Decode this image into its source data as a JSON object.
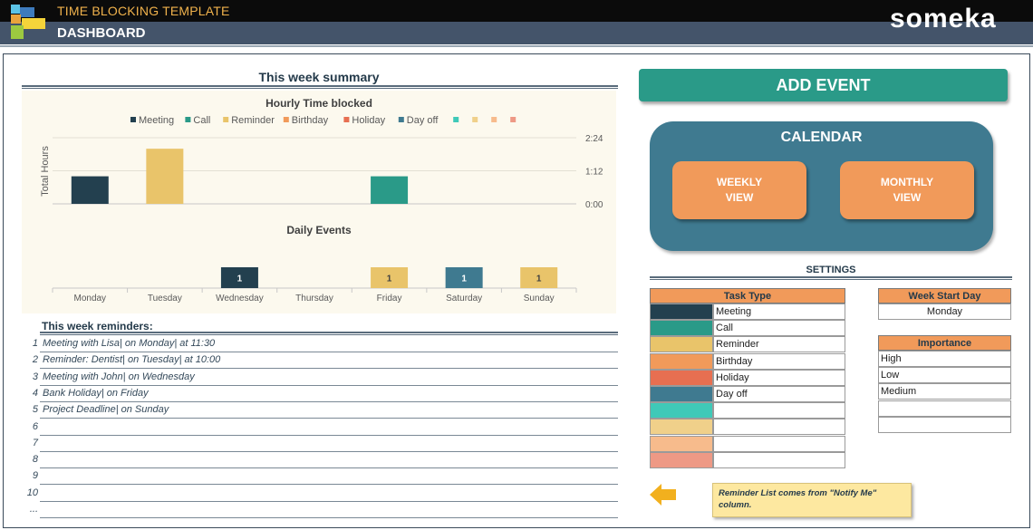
{
  "header": {
    "app_title": "TIME BLOCKING TEMPLATE",
    "page_title": "DASHBOARD",
    "brand": "someka",
    "logo_colors": [
      "#5bc3e6",
      "#3e7bbd",
      "#e9a33c",
      "#f5d43a",
      "#9cc940"
    ]
  },
  "summary": {
    "title": "This week summary"
  },
  "chart_data": [
    {
      "type": "bar",
      "title": "Hourly Time blocked",
      "ylabel": "Total Hours",
      "y_ticks": [
        "0:00",
        "1:12",
        "2:24"
      ],
      "ylim_minutes": [
        0,
        144
      ],
      "legend": [
        {
          "name": "Meeting",
          "color": "#23404f"
        },
        {
          "name": "Call",
          "color": "#2a9a88"
        },
        {
          "name": "Reminder",
          "color": "#e9c46a"
        },
        {
          "name": "Birthday",
          "color": "#f19a5a"
        },
        {
          "name": "Holiday",
          "color": "#e76f51"
        },
        {
          "name": "Day off",
          "color": "#3f7a90"
        },
        {
          "name": "",
          "color": "#3fc9b8"
        },
        {
          "name": "",
          "color": "#f0d08a"
        },
        {
          "name": "",
          "color": "#f7bb8c"
        },
        {
          "name": "",
          "color": "#ee9985"
        }
      ],
      "bars": [
        {
          "day": "Monday",
          "minutes": 60,
          "color": "#23404f"
        },
        {
          "day": "Tuesday",
          "minutes": 120,
          "color": "#e9c46a"
        },
        {
          "day": "Friday",
          "minutes": 60,
          "color": "#2a9a88"
        }
      ]
    },
    {
      "type": "bar",
      "title": "Daily Events",
      "categories": [
        "Monday",
        "Tuesday",
        "Wednesday",
        "Thursday",
        "Friday",
        "Saturday",
        "Sunday"
      ],
      "values": [
        0,
        0,
        1,
        0,
        1,
        1,
        1
      ],
      "colors": [
        "",
        "",
        "#23404f",
        "",
        "#e9c46a",
        "#3f7a90",
        "#e9c46a"
      ]
    }
  ],
  "reminders": {
    "header": "This week reminders:",
    "rows": [
      {
        "num": "1",
        "text": "Meeting with Lisa| on Monday| at 11:30"
      },
      {
        "num": "2",
        "text": "Reminder: Dentist| on Tuesday| at 10:00"
      },
      {
        "num": "3",
        "text": "Meeting with John| on Wednesday"
      },
      {
        "num": "4",
        "text": "Bank Holiday| on Friday"
      },
      {
        "num": "5",
        "text": "Project Deadline| on Sunday"
      },
      {
        "num": "6",
        "text": ""
      },
      {
        "num": "7",
        "text": ""
      },
      {
        "num": "8",
        "text": ""
      },
      {
        "num": "9",
        "text": ""
      },
      {
        "num": "10",
        "text": ""
      },
      {
        "num": "...",
        "text": ""
      }
    ]
  },
  "actions": {
    "add_event": "ADD EVENT",
    "calendar_title": "CALENDAR",
    "weekly_view": "WEEKLY VIEW",
    "monthly_view": "MONTHLY VIEW"
  },
  "settings": {
    "title": "SETTINGS",
    "task_type_header": "Task Type",
    "task_types": [
      {
        "label": "Meeting",
        "color": "#23404f"
      },
      {
        "label": "Call",
        "color": "#2a9a88"
      },
      {
        "label": "Reminder",
        "color": "#e9c46a"
      },
      {
        "label": "Birthday",
        "color": "#f19a5a"
      },
      {
        "label": "Holiday",
        "color": "#e76f51"
      },
      {
        "label": "Day off",
        "color": "#3f7a90"
      },
      {
        "label": "",
        "color": "#3fc9b8"
      },
      {
        "label": "",
        "color": "#f0d08a"
      },
      {
        "label": "",
        "color": "#f7bb8c"
      },
      {
        "label": "",
        "color": "#ee9985"
      }
    ],
    "week_start_header": "Week Start Day",
    "week_start_value": "Monday",
    "importance_header": "Importance",
    "importance_levels": [
      "High",
      "Low",
      "Medium",
      "",
      ""
    ]
  },
  "note": {
    "text": "Reminder List comes from \"Notify Me\" column.",
    "arrow_color": "#f2b01e"
  }
}
